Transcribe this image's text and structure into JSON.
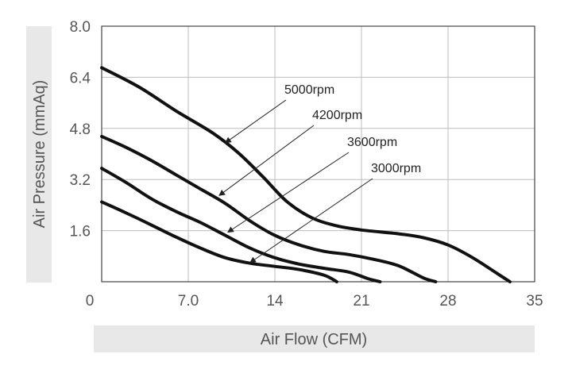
{
  "chart_data": {
    "type": "line",
    "xlabel": "Air Flow (CFM)",
    "ylabel": "Air Pressure (mmAq)",
    "xlim": [
      0,
      35
    ],
    "ylim": [
      0,
      8.0
    ],
    "x_ticks": [
      "0",
      "7.0",
      "14",
      "21",
      "28",
      "35"
    ],
    "y_ticks": [
      "1.6",
      "3.2",
      "4.8",
      "6.4",
      "8.0"
    ],
    "grid": true,
    "series": [
      {
        "name": "5000rpm",
        "x": [
          0,
          3,
          6,
          9,
          11,
          13,
          15,
          17,
          19,
          21,
          24,
          26,
          28,
          30,
          32,
          33
        ],
        "y": [
          6.7,
          6.1,
          5.35,
          4.65,
          4.05,
          3.3,
          2.5,
          2.0,
          1.75,
          1.62,
          1.5,
          1.38,
          1.15,
          0.75,
          0.25,
          0
        ]
      },
      {
        "name": "4200rpm",
        "x": [
          0,
          2,
          4,
          6,
          8,
          10,
          12,
          14,
          16,
          18,
          20,
          22,
          24,
          26,
          27
        ],
        "y": [
          4.55,
          4.2,
          3.8,
          3.35,
          2.9,
          2.45,
          1.9,
          1.45,
          1.15,
          0.95,
          0.85,
          0.7,
          0.5,
          0.12,
          0
        ]
      },
      {
        "name": "3600rpm",
        "x": [
          0,
          2,
          4,
          6,
          8,
          10,
          12,
          14,
          16,
          18,
          20,
          21.5,
          22.5
        ],
        "y": [
          3.55,
          3.1,
          2.6,
          2.2,
          1.85,
          1.45,
          1.05,
          0.75,
          0.55,
          0.42,
          0.3,
          0.1,
          0
        ]
      },
      {
        "name": "3000rpm",
        "x": [
          0,
          2,
          4,
          6,
          8,
          10,
          12,
          14,
          16,
          18,
          19
        ],
        "y": [
          2.5,
          2.15,
          1.78,
          1.4,
          1.05,
          0.75,
          0.58,
          0.48,
          0.38,
          0.2,
          0
        ]
      }
    ],
    "annotations": [
      {
        "text": "5000rpm",
        "series": 0,
        "arrow_to": [
          10,
          4.35
        ]
      },
      {
        "text": "4200rpm",
        "series": 1,
        "arrow_to": [
          9.5,
          2.7
        ]
      },
      {
        "text": "3600rpm",
        "series": 2,
        "arrow_to": [
          10.2,
          1.55
        ]
      },
      {
        "text": "3000rpm",
        "series": 3,
        "arrow_to": [
          12,
          0.6
        ]
      }
    ]
  },
  "colors": {
    "line": "#111111",
    "grid": "#bdbdbd",
    "axis_band": "#e8e8e8",
    "tick_text": "#555555"
  }
}
